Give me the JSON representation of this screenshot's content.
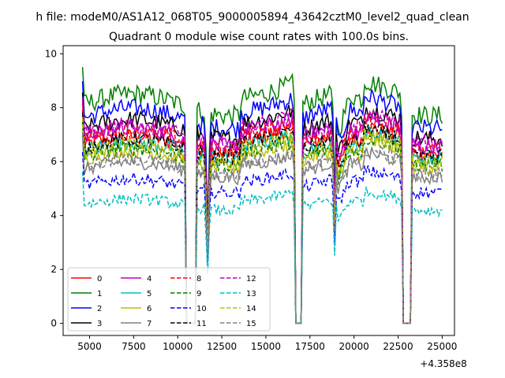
{
  "chart_data": {
    "type": "line",
    "suptitle": "h file: modeM0/AS1A12_068T05_9000005894_43642cztM0_level2_quad_clean",
    "title": "Quadrant 0 module wise count rates with 100.0s bins.",
    "xlabel": "",
    "ylabel": "",
    "x_offset_label": "+4.358e8",
    "xlim": [
      3500,
      25700
    ],
    "ylim": [
      -0.45,
      10.3
    ],
    "x_ticks": [
      5000,
      7500,
      10000,
      12500,
      15000,
      17500,
      20000,
      22500,
      25000
    ],
    "x_tick_labels": [
      "5000",
      "7500",
      "10000",
      "12500",
      "15000",
      "17500",
      "20000",
      "22500",
      "25000"
    ],
    "y_ticks": [
      0,
      2,
      4,
      6,
      8,
      10
    ],
    "y_tick_labels": [
      "0",
      "2",
      "4",
      "6",
      "8",
      "10"
    ],
    "x_start": 4600,
    "x_end": 25000,
    "x_step": 100,
    "gaps": [
      {
        "start": 10500,
        "end": 11000,
        "value": 0
      },
      {
        "start": 16700,
        "end": 17000,
        "value": 0
      },
      {
        "start": 22800,
        "end": 23200,
        "value": 0
      }
    ],
    "dips": [
      {
        "center": 11700,
        "depth": 0.55,
        "width": 150
      },
      {
        "center": 18900,
        "depth": 0.45,
        "width": 120
      }
    ],
    "series": [
      {
        "name": "0",
        "color": "#ff0000",
        "dash": "solid",
        "level": 6.6
      },
      {
        "name": "1",
        "color": "#008000",
        "dash": "solid",
        "level": 8.1
      },
      {
        "name": "2",
        "color": "#0000ff",
        "dash": "solid",
        "level": 7.6
      },
      {
        "name": "3",
        "color": "#000000",
        "dash": "solid",
        "level": 7.2
      },
      {
        "name": "4",
        "color": "#bf00bf",
        "dash": "solid",
        "level": 6.9
      },
      {
        "name": "5",
        "color": "#00bfbf",
        "dash": "solid",
        "level": 6.4
      },
      {
        "name": "6",
        "color": "#bfbf00",
        "dash": "solid",
        "level": 6.1
      },
      {
        "name": "7",
        "color": "#808080",
        "dash": "solid",
        "level": 5.7
      },
      {
        "name": "8",
        "color": "#ff0000",
        "dash": "dashed",
        "level": 6.8
      },
      {
        "name": "9",
        "color": "#008000",
        "dash": "dashed",
        "level": 6.2
      },
      {
        "name": "10",
        "color": "#0000ff",
        "dash": "dashed",
        "level": 5.1
      },
      {
        "name": "11",
        "color": "#000000",
        "dash": "dashed",
        "level": 6.5
      },
      {
        "name": "12",
        "color": "#bf00bf",
        "dash": "dashed",
        "level": 7.0
      },
      {
        "name": "13",
        "color": "#00bfbf",
        "dash": "dashed",
        "level": 4.4
      },
      {
        "name": "14",
        "color": "#bfbf00",
        "dash": "dashed",
        "level": 6.3
      },
      {
        "name": "15",
        "color": "#808080",
        "dash": "dashed",
        "level": 5.8
      }
    ],
    "legend_position": "lower-left",
    "legend_columns": 4
  }
}
